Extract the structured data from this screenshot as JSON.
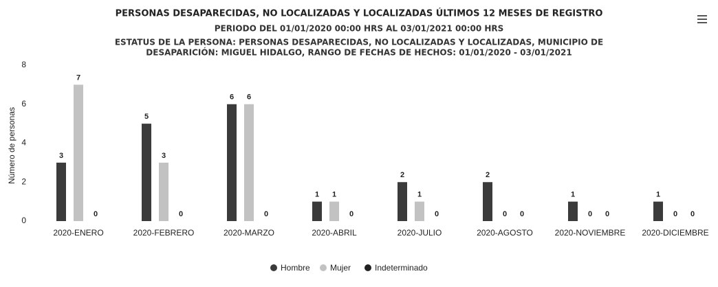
{
  "chart_data": {
    "type": "bar",
    "title": "PERSONAS DESAPARECIDAS, NO LOCALIZADAS Y LOCALIZADAS ÚLTIMOS 12 MESES DE REGISTRO",
    "subtitle": [
      "PERIODO DEL 01/01/2020 00:00 HRS AL 03/01/2021 00:00 HRS",
      "ESTATUS DE LA PERSONA: PERSONAS DESAPARECIDAS, NO LOCALIZADAS Y LOCALIZADAS, MUNICIPIO DE",
      "DESAPARICIÓN: MIGUEL HIDALGO, RANGO DE FECHAS DE HECHOS: 01/01/2020 - 03/01/2021"
    ],
    "y_label": "Número de personas",
    "categories": [
      "2020-ENERO",
      "2020-FEBRERO",
      "2020-MARZO",
      "2020-ABRIL",
      "2020-JULIO",
      "2020-AGOSTO",
      "2020-NOVIEMBRE",
      "2020-DICIEMBRE"
    ],
    "series": [
      {
        "name": "Hombre",
        "color": "#3b3b3b",
        "values": [
          3,
          5,
          6,
          1,
          2,
          2,
          1,
          1
        ]
      },
      {
        "name": "Mujer",
        "color": "#c2c2c2",
        "values": [
          7,
          3,
          6,
          1,
          1,
          0,
          0,
          0
        ]
      },
      {
        "name": "Indeterminado",
        "color": "#222222",
        "values": [
          0,
          0,
          0,
          0,
          0,
          0,
          0,
          0
        ]
      }
    ],
    "ylim": [
      0,
      8
    ],
    "yticks": [
      0,
      2,
      4,
      6,
      8
    ],
    "grid": false
  }
}
